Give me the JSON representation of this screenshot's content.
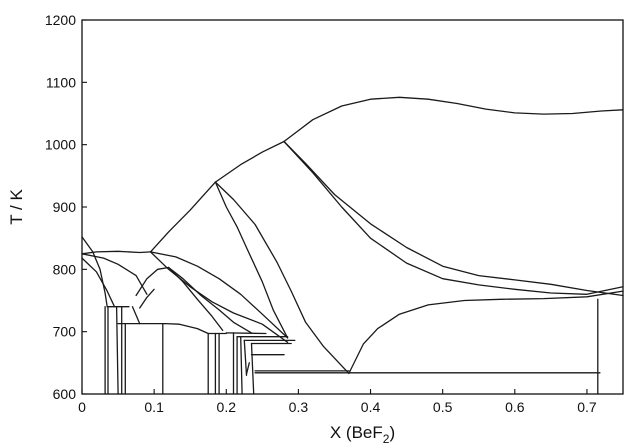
{
  "chart_data": {
    "type": "line",
    "title": "",
    "xlabel": "X (BeF",
    "xlabel_subscript": "2",
    "xlabel_suffix": ")",
    "ylabel": "T / K",
    "xlim": [
      0,
      0.75
    ],
    "ylim": [
      600,
      1200
    ],
    "x_ticks": [
      "0",
      "0.1",
      "0.2",
      "0.3",
      "0.4",
      "0.5",
      "0.6",
      "0.7"
    ],
    "x_tick_values": [
      0,
      0.1,
      0.2,
      0.3,
      0.4,
      0.5,
      0.6,
      0.7
    ],
    "y_ticks": [
      "600",
      "700",
      "800",
      "900",
      "1000",
      "1100",
      "1200"
    ],
    "y_tick_values": [
      600,
      700,
      800,
      900,
      1000,
      1100,
      1200
    ],
    "grid": false,
    "line_color": "#1a1a1a",
    "series": [
      {
        "points": [
          [
            0.28,
            1005
          ],
          [
            0.32,
            1040
          ],
          [
            0.36,
            1062
          ],
          [
            0.4,
            1073
          ],
          [
            0.44,
            1076
          ],
          [
            0.48,
            1073
          ],
          [
            0.52,
            1066
          ],
          [
            0.56,
            1057
          ],
          [
            0.6,
            1051
          ],
          [
            0.64,
            1049
          ],
          [
            0.68,
            1050
          ],
          [
            0.72,
            1054
          ],
          [
            0.75,
            1056
          ]
        ]
      },
      {
        "points": [
          [
            0.095,
            828
          ],
          [
            0.12,
            860
          ],
          [
            0.15,
            895
          ],
          [
            0.185,
            940
          ]
        ]
      },
      {
        "points": [
          [
            0.185,
            940
          ],
          [
            0.22,
            968
          ],
          [
            0.25,
            988
          ],
          [
            0.28,
            1005
          ]
        ]
      },
      {
        "points": [
          [
            0.28,
            1005
          ],
          [
            0.31,
            970
          ],
          [
            0.35,
            920
          ],
          [
            0.4,
            873
          ],
          [
            0.45,
            835
          ],
          [
            0.5,
            805
          ],
          [
            0.55,
            790
          ],
          [
            0.6,
            783
          ],
          [
            0.65,
            776
          ],
          [
            0.7,
            766
          ],
          [
            0.75,
            758
          ]
        ]
      },
      {
        "points": [
          [
            0.28,
            1005
          ],
          [
            0.32,
            955
          ],
          [
            0.36,
            900
          ],
          [
            0.4,
            850
          ],
          [
            0.45,
            810
          ],
          [
            0.5,
            785
          ],
          [
            0.55,
            775
          ],
          [
            0.6,
            768
          ],
          [
            0.65,
            762
          ],
          [
            0.7,
            760
          ],
          [
            0.75,
            772
          ]
        ]
      },
      {
        "points": [
          [
            0.185,
            940
          ],
          [
            0.21,
            912
          ],
          [
            0.24,
            872
          ],
          [
            0.27,
            812
          ],
          [
            0.29,
            765
          ],
          [
            0.31,
            715
          ],
          [
            0.335,
            676
          ],
          [
            0.37,
            633
          ]
        ]
      },
      {
        "points": [
          [
            0.185,
            940
          ],
          [
            0.2,
            900
          ],
          [
            0.215,
            868
          ],
          [
            0.23,
            830
          ],
          [
            0.25,
            780
          ],
          [
            0.265,
            735
          ],
          [
            0.285,
            690
          ]
        ]
      },
      {
        "points": [
          [
            0.37,
            633
          ],
          [
            0.39,
            680
          ],
          [
            0.41,
            705
          ],
          [
            0.44,
            728
          ],
          [
            0.48,
            743
          ],
          [
            0.53,
            750
          ],
          [
            0.58,
            752
          ],
          [
            0.64,
            753
          ],
          [
            0.7,
            756
          ],
          [
            0.75,
            765
          ]
        ]
      },
      {
        "points": [
          [
            0.0,
            825
          ],
          [
            0.02,
            828
          ],
          [
            0.05,
            829
          ],
          [
            0.08,
            827
          ],
          [
            0.095,
            828
          ]
        ]
      },
      {
        "points": [
          [
            0.0,
            825
          ],
          [
            0.03,
            818
          ],
          [
            0.05,
            808
          ],
          [
            0.075,
            790
          ],
          [
            0.09,
            760
          ]
        ]
      },
      {
        "points": [
          [
            0.0,
            852
          ],
          [
            0.015,
            828
          ],
          [
            0.025,
            800
          ],
          [
            0.032,
            762
          ],
          [
            0.035,
            740
          ]
        ]
      },
      {
        "points": [
          [
            0.0,
            818
          ],
          [
            0.02,
            796
          ],
          [
            0.035,
            765
          ],
          [
            0.045,
            740
          ]
        ]
      },
      {
        "points": [
          [
            0.095,
            828
          ],
          [
            0.12,
            800
          ],
          [
            0.15,
            772
          ],
          [
            0.18,
            748
          ],
          [
            0.21,
            730
          ],
          [
            0.25,
            712
          ],
          [
            0.285,
            683
          ]
        ]
      },
      {
        "points": [
          [
            0.095,
            828
          ],
          [
            0.13,
            820
          ],
          [
            0.16,
            805
          ],
          [
            0.19,
            785
          ],
          [
            0.22,
            760
          ],
          [
            0.25,
            728
          ],
          [
            0.285,
            690
          ]
        ]
      },
      {
        "points": [
          [
            0.075,
            758
          ],
          [
            0.09,
            785
          ],
          [
            0.105,
            800
          ],
          [
            0.12,
            803
          ]
        ]
      },
      {
        "points": [
          [
            0.12,
            803
          ],
          [
            0.14,
            785
          ],
          [
            0.165,
            758
          ],
          [
            0.19,
            735
          ],
          [
            0.21,
            715
          ],
          [
            0.235,
            698
          ]
        ]
      },
      {
        "points": [
          [
            0.12,
            803
          ],
          [
            0.14,
            780
          ],
          [
            0.16,
            752
          ],
          [
            0.18,
            725
          ],
          [
            0.195,
            702
          ]
        ]
      },
      {
        "points": [
          [
            0.08,
            738
          ],
          [
            0.09,
            755
          ],
          [
            0.1,
            768
          ]
        ]
      },
      {
        "points": [
          [
            0.07,
            740
          ],
          [
            0.08,
            713
          ]
        ]
      },
      {
        "points": [
          [
            0.035,
            740
          ],
          [
            0.065,
            740
          ]
        ]
      },
      {
        "points": [
          [
            0.05,
            713
          ],
          [
            0.115,
            713
          ]
        ]
      },
      {
        "points": [
          [
            0.115,
            713
          ],
          [
            0.135,
            712
          ],
          [
            0.16,
            705
          ],
          [
            0.175,
            697
          ]
        ]
      },
      {
        "points": [
          [
            0.175,
            697
          ],
          [
            0.2,
            697
          ]
        ]
      },
      {
        "points": [
          [
            0.2,
            698
          ],
          [
            0.255,
            697
          ]
        ]
      },
      {
        "points": [
          [
            0.215,
            692
          ],
          [
            0.285,
            692
          ]
        ]
      },
      {
        "points": [
          [
            0.225,
            686
          ],
          [
            0.295,
            686
          ]
        ]
      },
      {
        "points": [
          [
            0.235,
            681
          ],
          [
            0.29,
            681
          ]
        ]
      },
      {
        "points": [
          [
            0.235,
            663
          ],
          [
            0.28,
            663
          ]
        ]
      },
      {
        "points": [
          [
            0.24,
            634
          ],
          [
            0.718,
            634
          ]
        ]
      },
      {
        "points": [
          [
            0.24,
            637
          ],
          [
            0.37,
            637
          ]
        ]
      },
      {
        "points": [
          [
            0.228,
            632
          ],
          [
            0.232,
            650
          ]
        ]
      },
      {
        "points": [
          [
            0.032,
            740
          ],
          [
            0.032,
            600
          ]
        ]
      },
      {
        "points": [
          [
            0.036,
            740
          ],
          [
            0.036,
            600
          ]
        ]
      },
      {
        "points": [
          [
            0.048,
            740
          ],
          [
            0.05,
            600
          ]
        ]
      },
      {
        "points": [
          [
            0.055,
            740
          ],
          [
            0.055,
            600
          ]
        ]
      },
      {
        "points": [
          [
            0.06,
            713
          ],
          [
            0.06,
            600
          ]
        ]
      },
      {
        "points": [
          [
            0.112,
            713
          ],
          [
            0.112,
            600
          ]
        ]
      },
      {
        "points": [
          [
            0.175,
            697
          ],
          [
            0.175,
            600
          ]
        ]
      },
      {
        "points": [
          [
            0.185,
            697
          ],
          [
            0.185,
            600
          ]
        ]
      },
      {
        "points": [
          [
            0.19,
            697
          ],
          [
            0.19,
            600
          ]
        ]
      },
      {
        "points": [
          [
            0.21,
            698
          ],
          [
            0.21,
            600
          ]
        ]
      },
      {
        "points": [
          [
            0.215,
            692
          ],
          [
            0.215,
            600
          ]
        ]
      },
      {
        "points": [
          [
            0.22,
            692
          ],
          [
            0.222,
            600
          ]
        ]
      },
      {
        "points": [
          [
            0.225,
            686
          ],
          [
            0.228,
            630
          ]
        ]
      },
      {
        "points": [
          [
            0.235,
            681
          ],
          [
            0.238,
            600
          ]
        ]
      },
      {
        "points": [
          [
            0.715,
            752
          ],
          [
            0.715,
            600
          ]
        ]
      }
    ]
  }
}
